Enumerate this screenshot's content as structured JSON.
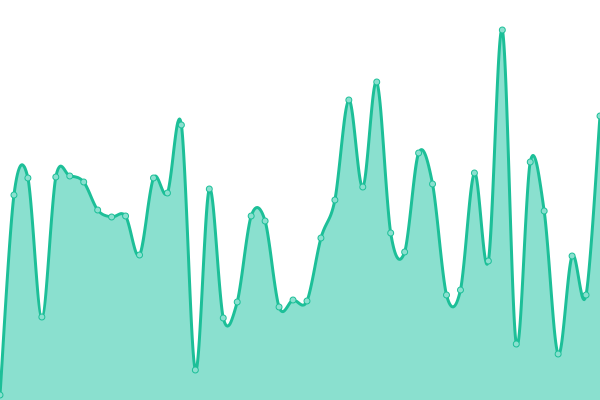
{
  "chart_data": {
    "type": "area",
    "title": "",
    "xlabel": "",
    "ylabel": "",
    "ylim": [
      0,
      400
    ],
    "grid": false,
    "legend": "none",
    "x": [
      0,
      1,
      2,
      3,
      4,
      5,
      6,
      7,
      8,
      9,
      10,
      11,
      12,
      13,
      14,
      15,
      16,
      17,
      18,
      19,
      20,
      21,
      22,
      23,
      24,
      25,
      26,
      27,
      28,
      29,
      30,
      31,
      32,
      33,
      34,
      35,
      36,
      37,
      38,
      39,
      40,
      41,
      42,
      43
    ],
    "values": [
      5,
      205,
      222,
      83,
      223,
      224,
      218,
      190,
      183,
      184,
      145,
      222,
      207,
      275,
      30,
      211,
      82,
      98,
      184,
      179,
      93,
      100,
      99,
      162,
      200,
      300,
      213,
      318,
      167,
      148,
      247,
      216,
      105,
      110,
      227,
      139,
      370,
      56,
      238,
      189,
      46,
      144,
      105,
      284
    ],
    "colors": {
      "line": "#1dbf98",
      "fill": "#8ae0cf",
      "marker_fill": "#8ae0cf",
      "marker_stroke": "#1dbf98"
    }
  }
}
